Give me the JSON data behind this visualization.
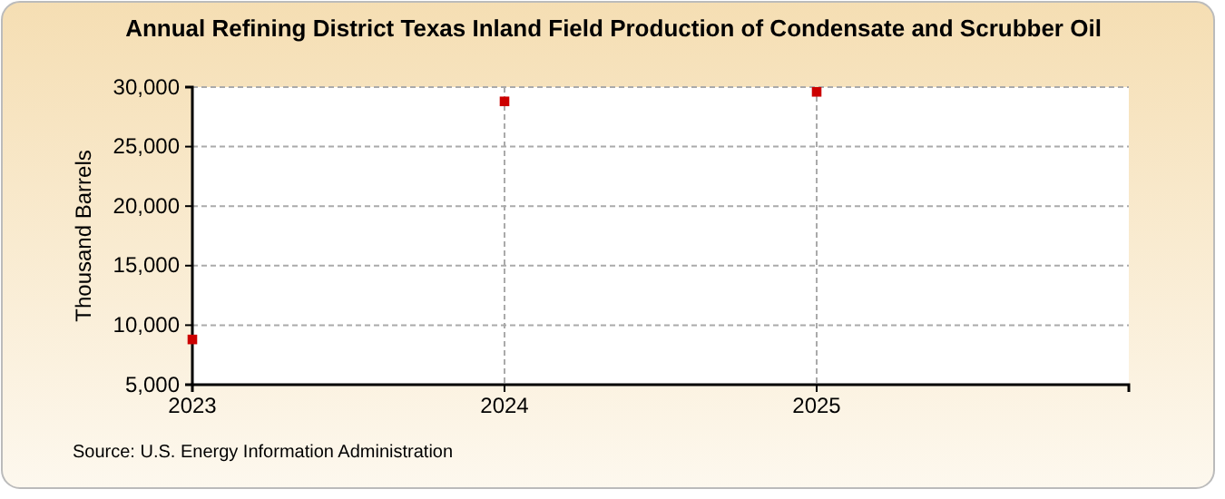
{
  "chart_data": {
    "type": "scatter",
    "title": "Annual Refining District Texas Inland Field Production  of Condensate and Scrubber Oil",
    "ylabel": "Thousand Barrels",
    "x": [
      2023,
      2024,
      2025
    ],
    "series": [
      {
        "color": "#cc0000",
        "values": [
          8800,
          28800,
          29600
        ]
      }
    ],
    "xlim": [
      2023,
      2026
    ],
    "xticks": [
      2023,
      2024,
      2025
    ],
    "ylim": [
      5000,
      30000
    ],
    "yticks": [
      {
        "value": 5000,
        "label": "5,000"
      },
      {
        "value": 10000,
        "label": "10,000"
      },
      {
        "value": 15000,
        "label": "15,000"
      },
      {
        "value": 20000,
        "label": "20,000"
      },
      {
        "value": 25000,
        "label": "25,000"
      },
      {
        "value": 30000,
        "label": "30,000"
      }
    ],
    "grid": true,
    "marker": "square",
    "annotations": [
      "Source: U.S. Energy Information Administration"
    ]
  }
}
